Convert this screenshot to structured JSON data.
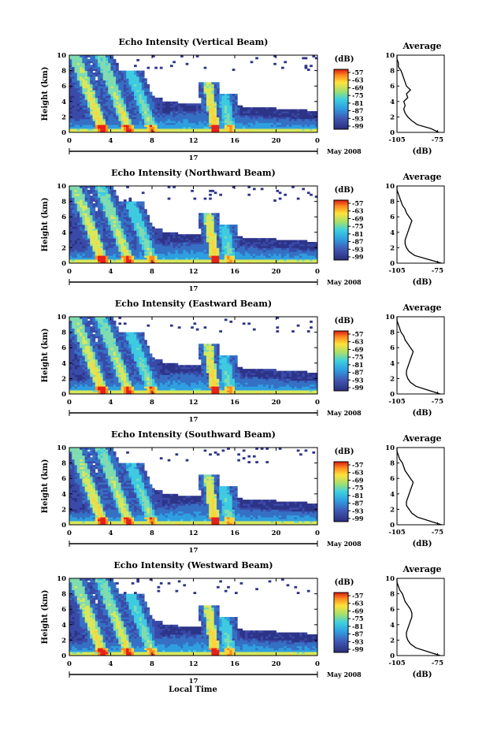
{
  "common": {
    "time_ticks": [
      "0",
      "4",
      "8",
      "12",
      "16",
      "20",
      "0"
    ],
    "height_ticks": [
      "0",
      "2",
      "4",
      "6",
      "8",
      "10"
    ],
    "height_label": "Height (km)",
    "date_label": "17",
    "month_label": "May 2008",
    "colorbar_unit": "(dB)",
    "colorbar_ticks": [
      "-57",
      "-63",
      "-69",
      "-75",
      "-81",
      "-87",
      "-93",
      "-99"
    ],
    "average_title": "Average",
    "average_ticks": [
      "-105",
      "-75"
    ],
    "average_unit": "(dB)",
    "xlabel": "Local Time"
  },
  "colors": {
    "low": "#3a3f99",
    "mid": "#35b6d6",
    "high": "#ffd23a",
    "peak": "#e8201a"
  },
  "chart_data": [
    {
      "type": "heatmap",
      "title": "Echo Intensity (Vertical Beam)",
      "x_range_hours": [
        0,
        24
      ],
      "y_range_km": [
        0,
        10
      ],
      "colorbar_range_db": [
        -99,
        -57
      ],
      "average_profile": {
        "xlim": [
          -105,
          -70
        ],
        "height": [
          0,
          0.5,
          1,
          1.5,
          2,
          2.5,
          3,
          3.5,
          4,
          4.5,
          5,
          5.5,
          6,
          6.5,
          7,
          7.5,
          8,
          8.5,
          9,
          9.5,
          10
        ],
        "db": [
          -74,
          -80,
          -90,
          -94,
          -97,
          -99,
          -100,
          -99,
          -100,
          -97,
          -98,
          -95,
          -98,
          -99,
          -100,
          -101,
          -102,
          -104,
          -104,
          -105,
          -105
        ]
      }
    },
    {
      "type": "heatmap",
      "title": "Echo Intensity (Northward Beam)",
      "x_range_hours": [
        0,
        24
      ],
      "y_range_km": [
        0,
        10
      ],
      "colorbar_range_db": [
        -99,
        -57
      ],
      "average_profile": {
        "xlim": [
          -105,
          -70
        ],
        "height": [
          0,
          0.5,
          1,
          1.5,
          2,
          2.5,
          3,
          3.5,
          4,
          4.5,
          5,
          5.5,
          6,
          6.5,
          7,
          7.5,
          8,
          8.5,
          9,
          9.5,
          10
        ],
        "db": [
          -72,
          -82,
          -92,
          -96,
          -98,
          -99,
          -99,
          -98,
          -97,
          -96,
          -95,
          -94,
          -96,
          -98,
          -99,
          -101,
          -102,
          -103,
          -104,
          -105,
          -105
        ]
      }
    },
    {
      "type": "heatmap",
      "title": "Echo Intensity (Eastward Beam)",
      "x_range_hours": [
        0,
        24
      ],
      "y_range_km": [
        0,
        10
      ],
      "colorbar_range_db": [
        -99,
        -57
      ],
      "average_profile": {
        "xlim": [
          -105,
          -70
        ],
        "height": [
          0,
          0.5,
          1,
          1.5,
          2,
          2.5,
          3,
          3.5,
          4,
          4.5,
          5,
          5.5,
          6,
          6.5,
          7,
          7.5,
          8,
          8.5,
          9,
          9.5,
          10
        ],
        "db": [
          -73,
          -82,
          -91,
          -95,
          -97,
          -98,
          -98,
          -97,
          -96,
          -95,
          -94,
          -93,
          -95,
          -97,
          -99,
          -100,
          -102,
          -103,
          -104,
          -105,
          -105
        ]
      }
    },
    {
      "type": "heatmap",
      "title": "Echo Intensity (Southward Beam)",
      "x_range_hours": [
        0,
        24
      ],
      "y_range_km": [
        0,
        10
      ],
      "colorbar_range_db": [
        -99,
        -57
      ],
      "average_profile": {
        "xlim": [
          -105,
          -70
        ],
        "height": [
          0,
          0.5,
          1,
          1.5,
          2,
          2.5,
          3,
          3.5,
          4,
          4.5,
          5,
          5.5,
          6,
          6.5,
          7,
          7.5,
          8,
          8.5,
          9,
          9.5,
          10
        ],
        "db": [
          -72,
          -81,
          -90,
          -94,
          -96,
          -98,
          -98,
          -97,
          -96,
          -95,
          -94,
          -93,
          -95,
          -97,
          -99,
          -100,
          -101,
          -103,
          -104,
          -105,
          -105
        ]
      }
    },
    {
      "type": "heatmap",
      "title": "Echo Intensity (Westward Beam)",
      "x_range_hours": [
        0,
        24
      ],
      "y_range_km": [
        0,
        10
      ],
      "colorbar_range_db": [
        -99,
        -57
      ],
      "average_profile": {
        "xlim": [
          -105,
          -70
        ],
        "height": [
          0,
          0.5,
          1,
          1.5,
          2,
          2.5,
          3,
          3.5,
          4,
          4.5,
          5,
          5.5,
          6,
          6.5,
          7,
          7.5,
          8,
          8.5,
          9,
          9.5,
          10
        ],
        "db": [
          -73,
          -82,
          -91,
          -95,
          -97,
          -98,
          -98,
          -97,
          -96,
          -95,
          -94,
          -94,
          -95,
          -97,
          -99,
          -100,
          -101,
          -103,
          -104,
          -105,
          -105
        ]
      }
    }
  ]
}
